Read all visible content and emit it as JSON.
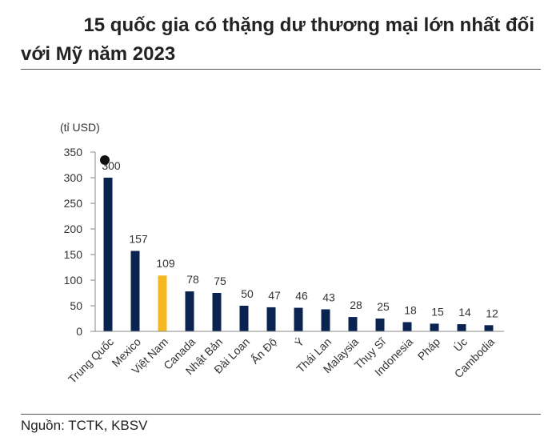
{
  "header": {
    "title_line1": "15 quốc gia có thặng dư thương mại lớn nhất đối",
    "title_line2": "với Mỹ năm 2023"
  },
  "footer": {
    "source": "Nguồn: TCTK, KBSV"
  },
  "colors": {
    "bar": "#0b2350",
    "highlight": "#f5b820",
    "axis": "#888888"
  },
  "chart_data": {
    "type": "bar",
    "title": "15 quốc gia có thặng dư thương mại lớn nhất đối với Mỹ năm 2023",
    "unit_label": "(tỉ USD)",
    "xlabel": "",
    "ylabel": "tỉ USD",
    "ylim": [
      0,
      350
    ],
    "yticks": [
      0,
      50,
      100,
      150,
      200,
      250,
      300,
      350
    ],
    "categories": [
      "Trung Quốc",
      "Mexico",
      "Việt Nam",
      "Canada",
      "Nhật Bản",
      "Đài Loan",
      "Ấn Độ",
      "Ý",
      "Thái Lan",
      "Malaysia",
      "Thụy Sĩ",
      "Indonesia",
      "Pháp",
      "Úc",
      "Cambodia"
    ],
    "values": [
      300,
      157,
      109,
      78,
      75,
      50,
      47,
      46,
      43,
      28,
      25,
      18,
      15,
      14,
      12
    ],
    "highlight_category": "Việt Nam",
    "grid": false
  }
}
